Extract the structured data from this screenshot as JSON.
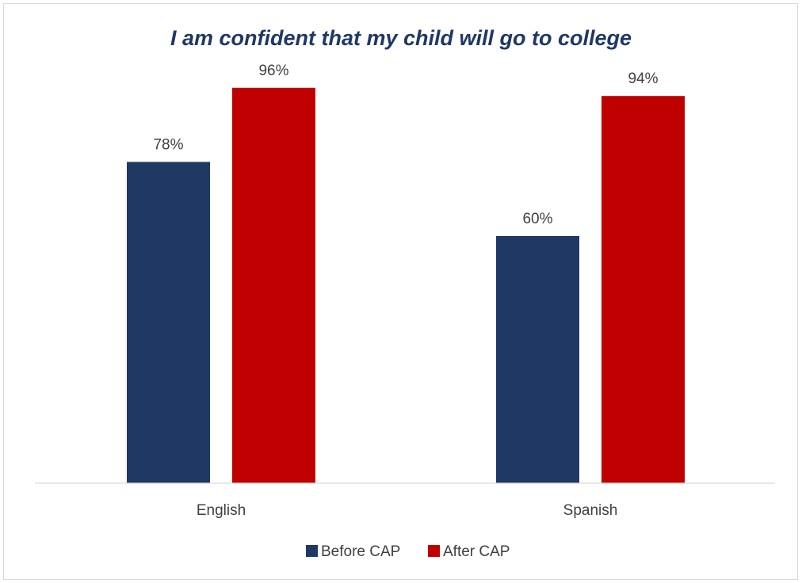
{
  "chart_data": {
    "type": "bar",
    "title": "I am confident that my child will go to college",
    "categories": [
      "English",
      "Spanish"
    ],
    "series": [
      {
        "name": "Before CAP",
        "values": [
          78,
          60
        ],
        "labels": [
          "78%",
          "60%"
        ],
        "color": "#203864"
      },
      {
        "name": "After CAP",
        "values": [
          96,
          94
        ],
        "labels": [
          "96%",
          "94%"
        ],
        "color": "#c00000"
      }
    ],
    "ylim": [
      0,
      100
    ],
    "grid": false,
    "legend_position": "bottom",
    "axis_color": "#d9d9d9"
  }
}
